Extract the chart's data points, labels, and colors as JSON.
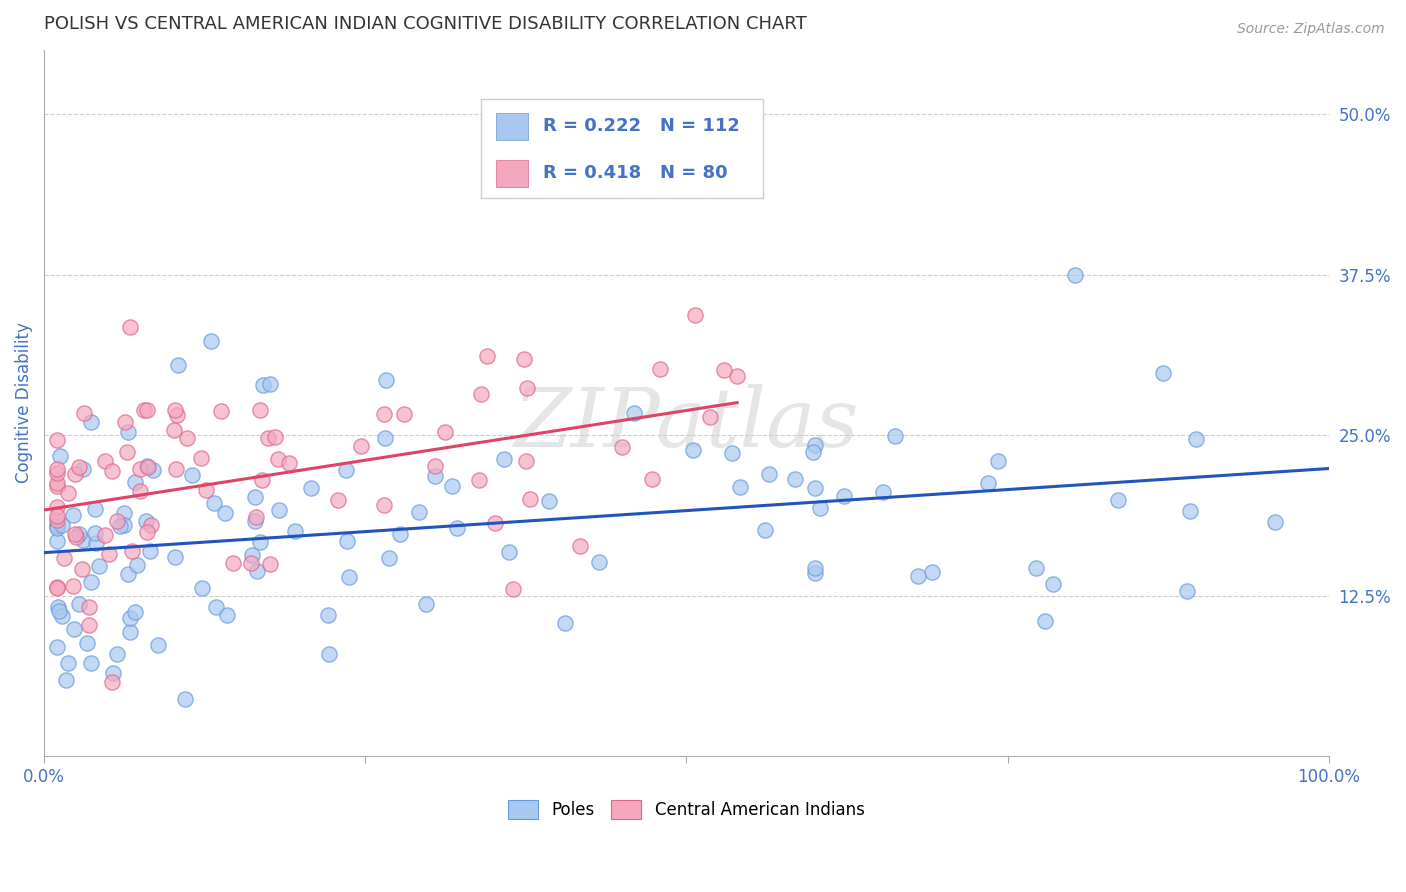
{
  "title": "POLISH VS CENTRAL AMERICAN INDIAN COGNITIVE DISABILITY CORRELATION CHART",
  "source_text": "Source: ZipAtlas.com",
  "ylabel": "Cognitive Disability",
  "xlim": [
    0.0,
    1.0
  ],
  "ylim": [
    0.0,
    0.55
  ],
  "poles_R": 0.222,
  "poles_N": 112,
  "cai_R": 0.418,
  "cai_N": 80,
  "poles_color": "#a8c8f0",
  "cai_color": "#f4a8c0",
  "poles_line_color": "#2255bb",
  "cai_line_color": "#dd4466",
  "poles_edge_color": "#6699dd",
  "cai_edge_color": "#dd6688",
  "watermark_color": "#dddddd",
  "background_color": "#ffffff",
  "grid_color": "#cccccc",
  "title_color": "#333333",
  "axis_label_color": "#4472c4",
  "tick_label_color": "#4472c4",
  "legend_border_color": "#cccccc",
  "poles_seed": 42,
  "cai_seed": 99
}
